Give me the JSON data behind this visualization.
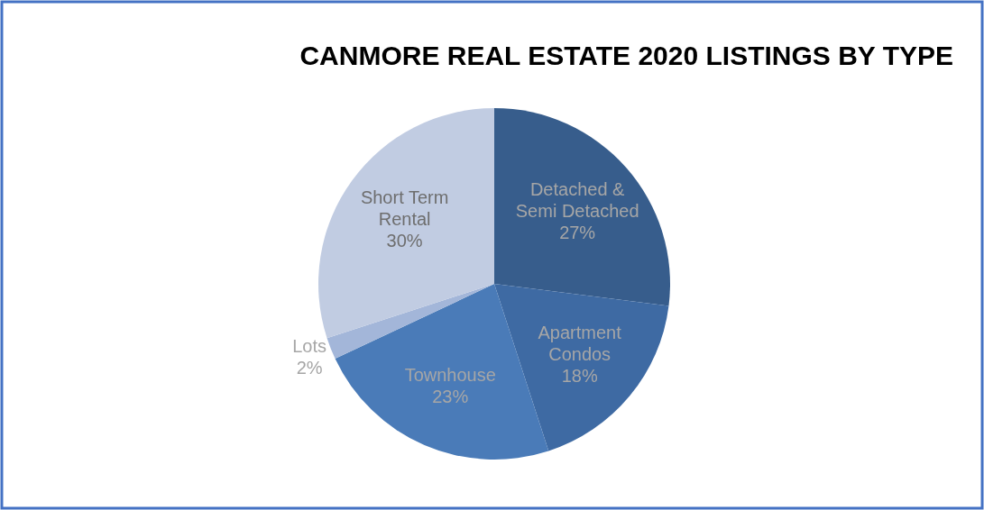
{
  "chart_data": {
    "type": "pie",
    "title": "CANMORE REAL ESTATE 2020 LISTINGS BY TYPE",
    "categories": [
      "Detached & Semi Detached",
      "Apartment Condos",
      "Townhouse",
      "Lots",
      "Short Term Rental"
    ],
    "values": [
      27,
      18,
      23,
      2,
      30
    ],
    "value_labels": [
      "27%",
      "18%",
      "23%",
      "2%",
      "30%"
    ],
    "colors": [
      "#375d8c",
      "#3e6aa3",
      "#4a7bb8",
      "#a3b6d9",
      "#c1cce2"
    ]
  }
}
